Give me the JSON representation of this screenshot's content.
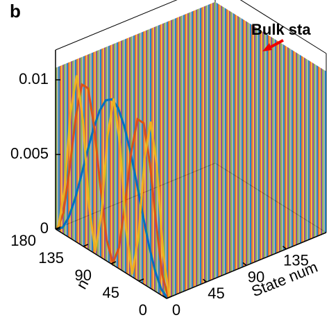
{
  "chart_data": {
    "type": "waterfall3d",
    "panel_label": "b",
    "annotation": "Bulk sta",
    "xlabel": "State num",
    "ylabel": "n",
    "xlim": [
      0,
      180
    ],
    "xticks": [
      0,
      45,
      90,
      135
    ],
    "ylim": [
      0,
      180
    ],
    "yticks": [
      0,
      45,
      90,
      135,
      180
    ],
    "zlim": [
      0,
      0.012
    ],
    "zticks": [
      0,
      0.005,
      0.01
    ],
    "x": [
      0,
      10,
      20,
      30,
      40,
      50,
      60,
      70,
      80,
      90,
      100,
      110,
      120,
      130,
      140,
      150,
      160,
      170,
      180
    ],
    "series": [
      {
        "state": 1,
        "color": "#0072bd",
        "values": [
          0,
          0.00033,
          0.00129,
          0.00275,
          0.00455,
          0.00645,
          0.00825,
          0.00971,
          0.01067,
          0.011,
          0.01067,
          0.00971,
          0.00825,
          0.00645,
          0.00455,
          0.00275,
          0.00129,
          0.00033,
          0
        ]
      },
      {
        "state": 2,
        "color": "#d95319",
        "values": [
          0,
          0.00129,
          0.00455,
          0.00825,
          0.01067,
          0.01067,
          0.00825,
          0.00455,
          0.00129,
          0,
          0.00129,
          0.00455,
          0.00825,
          0.01067,
          0.01067,
          0.00825,
          0.00455,
          0.00129,
          0
        ]
      },
      {
        "state": 3,
        "color": "#edb120",
        "values": [
          0,
          0.00275,
          0.00825,
          0.011,
          0.00825,
          0.00275,
          0,
          0.00275,
          0.00825,
          0.011,
          0.00825,
          0.00275,
          0,
          0.00275,
          0.00825,
          0.011,
          0.00825,
          0.00275,
          0
        ]
      }
    ]
  }
}
